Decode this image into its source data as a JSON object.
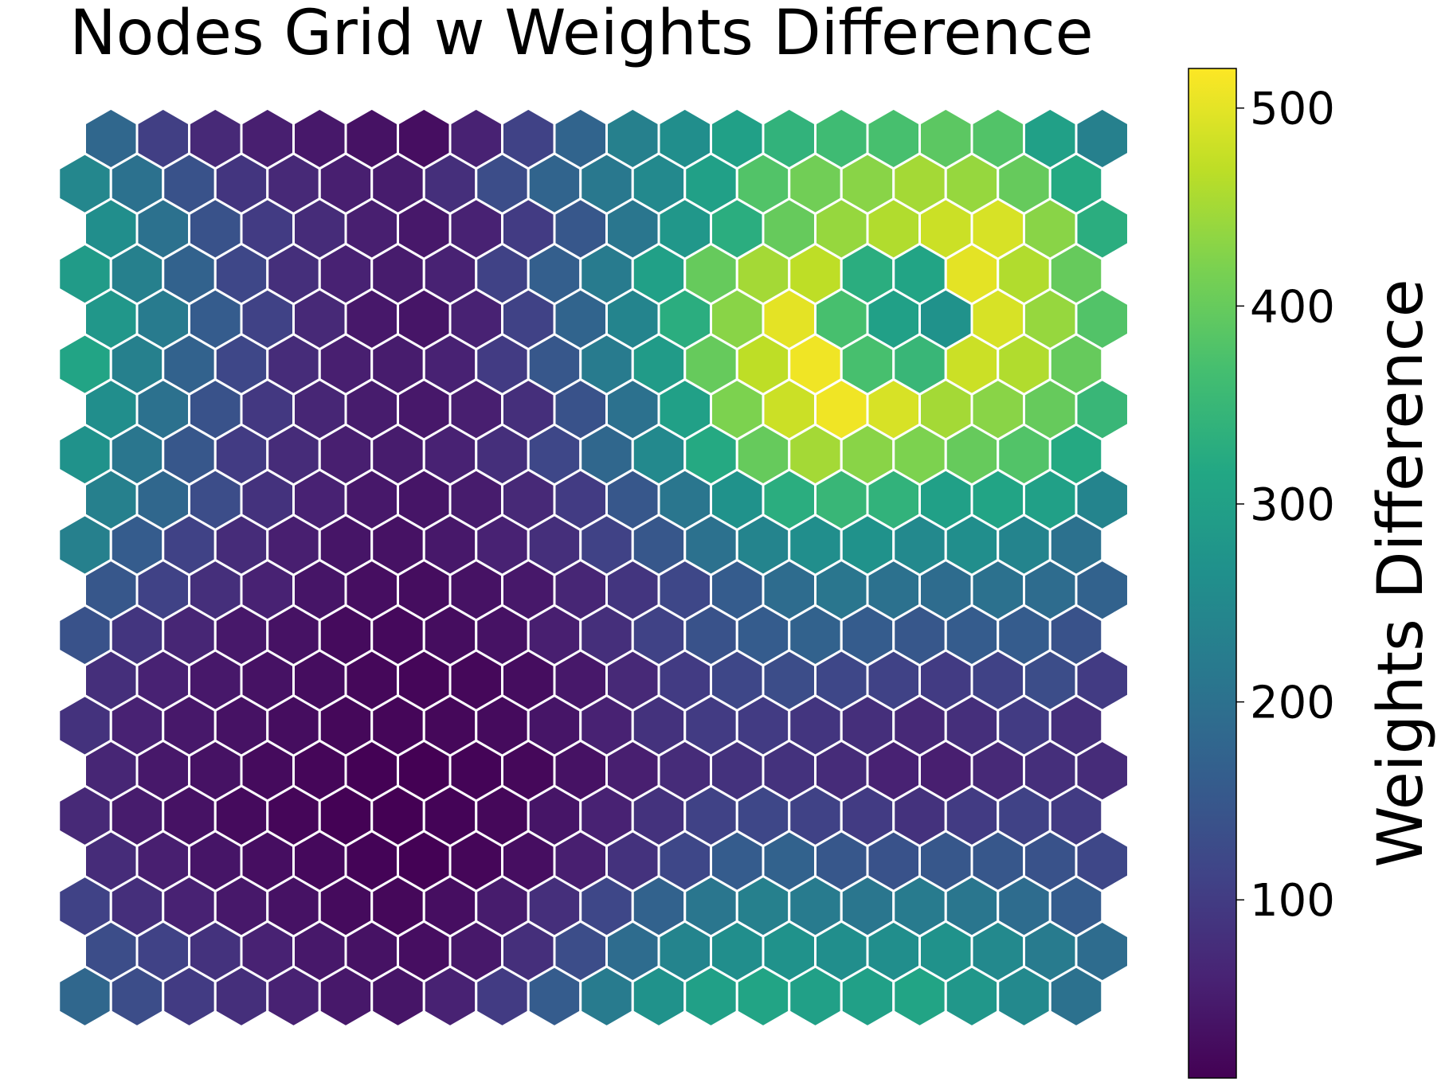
{
  "chart_data": {
    "type": "heatmap",
    "subtype": "hexagonal-grid",
    "title": "Nodes Grid w Weights Difference",
    "colormap": "viridis",
    "colorbar": {
      "label": "Weights Difference",
      "range": [
        10,
        520
      ],
      "ticks": [
        100,
        200,
        300,
        400,
        500
      ],
      "position": "right"
    },
    "grid": false,
    "rows": 20,
    "cols": 20,
    "odd_row_offset": "right",
    "values": [
      [
        180,
        105,
        70,
        55,
        45,
        35,
        30,
        60,
        110,
        175,
        230,
        260,
        300,
        340,
        360,
        370,
        390,
        380,
        300,
        230
      ],
      [
        245,
        200,
        140,
        90,
        70,
        55,
        50,
        80,
        130,
        175,
        215,
        250,
        300,
        380,
        410,
        430,
        450,
        440,
        400,
        320
      ],
      [
        260,
        200,
        140,
        100,
        75,
        55,
        45,
        60,
        100,
        150,
        210,
        280,
        330,
        400,
        440,
        460,
        480,
        490,
        430,
        330
      ],
      [
        290,
        230,
        170,
        120,
        80,
        60,
        50,
        60,
        110,
        165,
        220,
        300,
        400,
        450,
        470,
        330,
        310,
        500,
        460,
        400
      ],
      [
        280,
        220,
        160,
        110,
        70,
        45,
        40,
        60,
        110,
        175,
        240,
        330,
        430,
        500,
        370,
        300,
        270,
        490,
        440,
        380
      ],
      [
        310,
        230,
        170,
        120,
        75,
        55,
        50,
        60,
        100,
        150,
        220,
        290,
        400,
        470,
        510,
        370,
        350,
        480,
        460,
        400
      ],
      [
        260,
        200,
        140,
        95,
        65,
        50,
        45,
        55,
        80,
        140,
        200,
        300,
        420,
        480,
        510,
        490,
        450,
        430,
        400,
        350
      ],
      [
        270,
        210,
        150,
        100,
        75,
        55,
        50,
        60,
        80,
        120,
        180,
        250,
        320,
        400,
        450,
        430,
        420,
        400,
        380,
        320
      ],
      [
        230,
        180,
        130,
        85,
        60,
        45,
        40,
        50,
        70,
        100,
        150,
        210,
        270,
        330,
        350,
        340,
        300,
        310,
        300,
        240
      ],
      [
        230,
        160,
        110,
        75,
        55,
        40,
        35,
        45,
        60,
        80,
        110,
        150,
        200,
        240,
        260,
        270,
        250,
        260,
        240,
        200
      ],
      [
        150,
        110,
        80,
        60,
        40,
        30,
        28,
        35,
        45,
        65,
        90,
        120,
        160,
        190,
        210,
        200,
        190,
        200,
        190,
        170
      ],
      [
        140,
        90,
        65,
        45,
        35,
        25,
        22,
        28,
        35,
        55,
        80,
        110,
        140,
        160,
        170,
        160,
        150,
        160,
        160,
        140
      ],
      [
        80,
        60,
        45,
        35,
        28,
        20,
        18,
        20,
        28,
        45,
        70,
        100,
        120,
        130,
        120,
        110,
        100,
        110,
        130,
        100
      ],
      [
        85,
        60,
        45,
        35,
        28,
        20,
        18,
        20,
        25,
        40,
        60,
        85,
        100,
        100,
        90,
        80,
        70,
        80,
        100,
        80
      ],
      [
        65,
        45,
        35,
        25,
        18,
        12,
        10,
        15,
        20,
        35,
        55,
        75,
        85,
        85,
        75,
        60,
        55,
        70,
        80,
        75
      ],
      [
        70,
        50,
        35,
        25,
        18,
        12,
        10,
        15,
        20,
        40,
        60,
        85,
        110,
        120,
        110,
        100,
        85,
        100,
        110,
        100
      ],
      [
        75,
        55,
        40,
        30,
        22,
        15,
        12,
        18,
        30,
        55,
        85,
        120,
        160,
        170,
        150,
        140,
        150,
        150,
        140,
        120
      ],
      [
        110,
        80,
        60,
        45,
        35,
        25,
        20,
        30,
        50,
        80,
        120,
        170,
        210,
        230,
        220,
        210,
        220,
        210,
        190,
        160
      ],
      [
        130,
        110,
        85,
        60,
        45,
        35,
        30,
        45,
        80,
        130,
        190,
        240,
        260,
        270,
        260,
        260,
        270,
        250,
        220,
        190
      ],
      [
        180,
        130,
        100,
        80,
        60,
        45,
        40,
        60,
        100,
        160,
        220,
        270,
        300,
        310,
        300,
        300,
        310,
        280,
        250,
        200
      ]
    ]
  }
}
